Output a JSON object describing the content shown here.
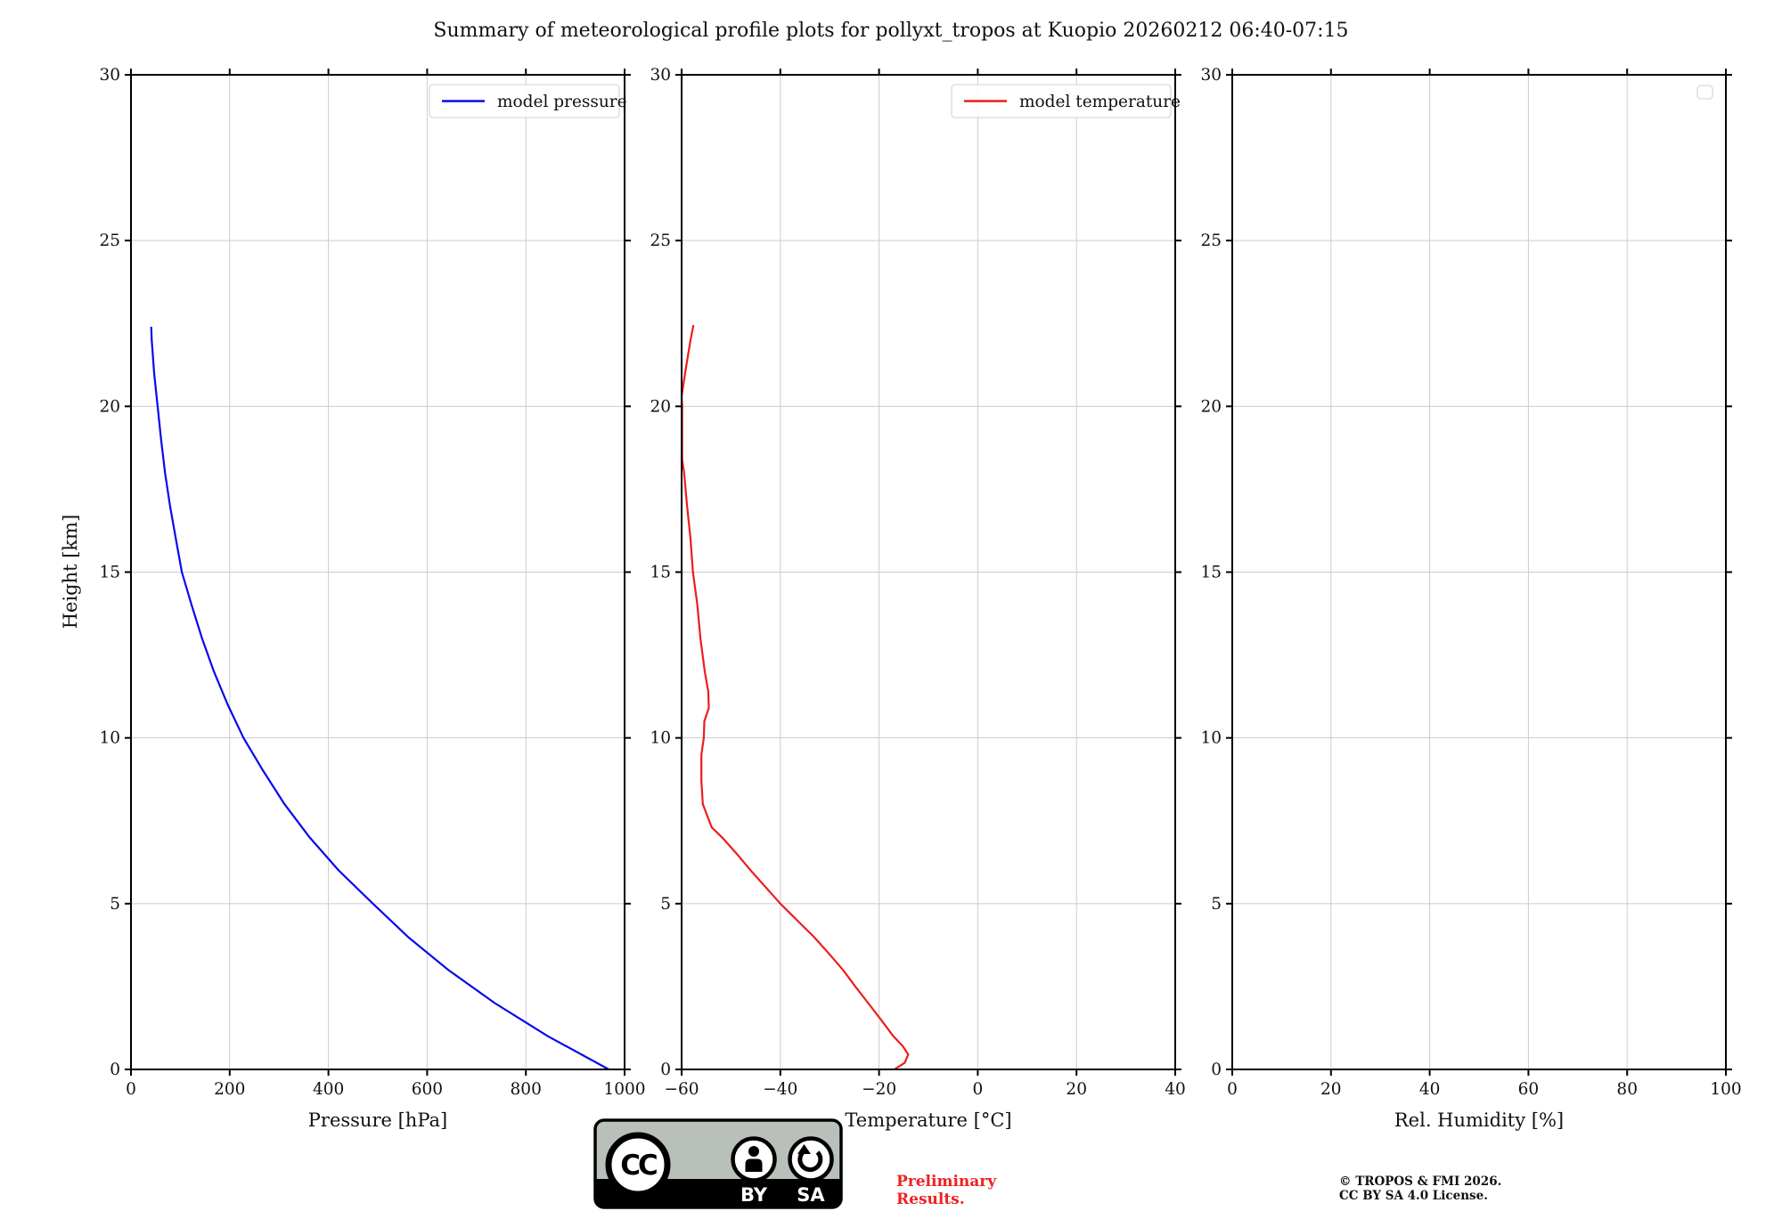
{
  "title": "Summary of meteorological profile plots for pollyxt_tropos at Kuopio 20260212 06:40-07:15",
  "ylabel": "Height [km]",
  "y_tick_values": [
    0,
    5,
    10,
    15,
    20,
    25,
    30
  ],
  "y_tick_labels": [
    "0",
    "5",
    "10",
    "15",
    "20",
    "25",
    "30"
  ],
  "chart_data": [
    {
      "id": "pressure",
      "type": "line",
      "xlabel": "Pressure [hPa]",
      "ylabel": "Height [km]",
      "xlim": [
        0,
        1000
      ],
      "ylim": [
        0,
        30
      ],
      "grid": true,
      "legend_position": "upper right",
      "x_tick_values": [
        0,
        200,
        400,
        600,
        800,
        1000
      ],
      "x_tick_labels": [
        "0",
        "200",
        "400",
        "600",
        "800",
        "1000"
      ],
      "legend": {
        "label": "model pressure",
        "empty": false
      },
      "series": [
        {
          "name": "model pressure",
          "color": "#0808ee",
          "height_km": [
            0,
            1,
            2,
            3,
            4,
            5,
            6,
            7,
            8,
            9,
            10,
            11,
            12,
            13,
            14,
            15,
            16,
            17,
            18,
            19,
            20,
            21,
            22,
            22.4
          ],
          "values": [
            968,
            845,
            737,
            643,
            561,
            490,
            421,
            362,
            311,
            268,
            228,
            196,
            168,
            144,
            123,
            103,
            91,
            79,
            69,
            61,
            54,
            47,
            42,
            41
          ]
        }
      ]
    },
    {
      "id": "temperature",
      "type": "line",
      "xlabel": "Temperature [°C]",
      "ylabel": "Height [km]",
      "xlim": [
        -60,
        40
      ],
      "ylim": [
        0,
        30
      ],
      "grid": true,
      "legend_position": "upper right",
      "x_tick_values": [
        -60,
        -40,
        -20,
        0,
        20,
        40
      ],
      "x_tick_labels": [
        "−60",
        "−40",
        "−20",
        "0",
        "20",
        "40"
      ],
      "legend": {
        "label": "model temperature",
        "empty": false
      },
      "series": [
        {
          "name": "model temperature",
          "color": "#ee1c1c",
          "height_km": [
            0,
            0.2,
            0.45,
            0.7,
            1.0,
            1.5,
            2.0,
            2.5,
            3.0,
            3.5,
            4.0,
            4.5,
            5.0,
            5.5,
            6.0,
            6.5,
            7.0,
            7.3,
            8.0,
            8.7,
            9.5,
            10.0,
            10.5,
            10.9,
            11.4,
            12.0,
            13.0,
            14.0,
            15.0,
            16.0,
            17.0,
            18.0,
            18.4,
            19.0,
            20.0,
            20.3,
            21.0,
            22.0,
            22.45
          ],
          "values": [
            -16.9,
            -14.8,
            -14.1,
            -15.2,
            -17.1,
            -19.6,
            -22.2,
            -24.8,
            -27.3,
            -30.2,
            -33.2,
            -36.6,
            -40.0,
            -43.0,
            -46.0,
            -48.8,
            -51.8,
            -53.9,
            -55.7,
            -56.0,
            -56.0,
            -55.5,
            -55.4,
            -54.5,
            -54.6,
            -55.3,
            -56.2,
            -56.8,
            -57.7,
            -58.2,
            -58.9,
            -59.5,
            -59.9,
            -59.9,
            -59.9,
            -60.0,
            -59.3,
            -58.2,
            -57.6
          ]
        }
      ]
    },
    {
      "id": "humidity",
      "type": "line",
      "xlabel": "Rel. Humidity [%]",
      "ylabel": "Height [km]",
      "xlim": [
        0,
        100
      ],
      "ylim": [
        0,
        30
      ],
      "grid": true,
      "legend_position": "upper right",
      "x_tick_values": [
        0,
        20,
        40,
        60,
        80,
        100
      ],
      "x_tick_labels": [
        "0",
        "20",
        "40",
        "60",
        "80",
        "100"
      ],
      "legend": {
        "label": "",
        "empty": true
      },
      "series": []
    }
  ],
  "footer": {
    "license_badge": {
      "cc_label": "CC",
      "by_label": "BY",
      "sa_label": "SA"
    },
    "preliminary": {
      "line1": "Preliminary",
      "line2": "Results.",
      "color": "#ee2222"
    },
    "copyright": {
      "line1": "© TROPOS & FMI 2026.",
      "line2": "CC BY SA 4.0 License."
    }
  }
}
